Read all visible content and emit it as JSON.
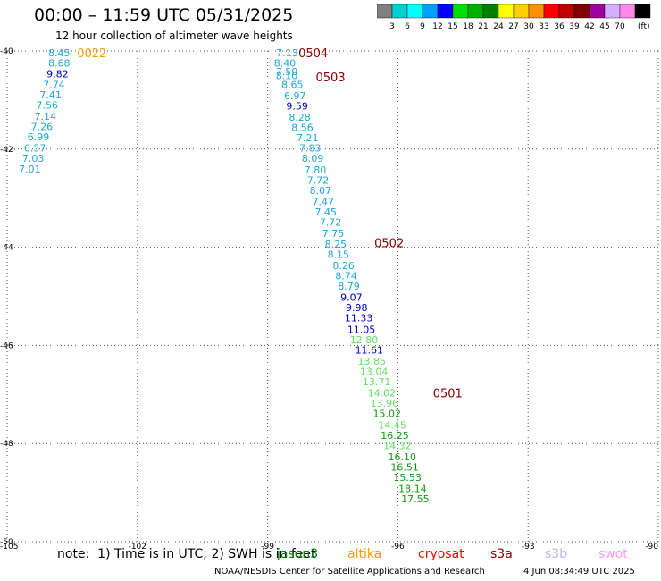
{
  "header": {
    "title": "00:00 – 11:59 UTC 05/31/2025",
    "subtitle": "12 hour collection of altimeter wave heights"
  },
  "colorbar": {
    "bins": [
      {
        "label": "",
        "color": "#808080"
      },
      {
        "label": "3",
        "color": "#00d0d0"
      },
      {
        "label": "6",
        "color": "#00ffff"
      },
      {
        "label": "9",
        "color": "#00a0ff"
      },
      {
        "label": "12",
        "color": "#0000ff"
      },
      {
        "label": "15",
        "color": "#00e000"
      },
      {
        "label": "18",
        "color": "#00b000"
      },
      {
        "label": "21",
        "color": "#008000"
      },
      {
        "label": "24",
        "color": "#ffff00"
      },
      {
        "label": "27",
        "color": "#ffd000"
      },
      {
        "label": "30",
        "color": "#ff9000"
      },
      {
        "label": "33",
        "color": "#ff0000"
      },
      {
        "label": "36",
        "color": "#c00000"
      },
      {
        "label": "39",
        "color": "#800000"
      },
      {
        "label": "42",
        "color": "#a000a0"
      },
      {
        "label": "45",
        "color": "#d0b0ff"
      },
      {
        "label": "70",
        "color": "#ff88e8"
      },
      {
        "label": "",
        "color": "#000000"
      }
    ],
    "unit": "(ft)"
  },
  "chart_data": {
    "type": "scatter",
    "xlabel": "",
    "ylabel": "",
    "xlim": [
      -105,
      -90
    ],
    "ylim": [
      -50,
      -40
    ],
    "xticks": [
      "-105",
      "-102",
      "-99",
      "-96",
      "-93",
      "-90"
    ],
    "yticks": [
      "-40",
      "-42",
      "-44",
      "-46",
      "-48",
      "-50"
    ],
    "grid": true,
    "points": [
      {
        "x": -103.8,
        "y": -40.04,
        "label": "8.45",
        "color": "#1ea8d8"
      },
      {
        "x": -103.8,
        "y": -40.25,
        "label": "8.68",
        "color": "#1ea8d8"
      },
      {
        "x": -103.84,
        "y": -40.46,
        "label": "9.82",
        "color": "#0000cc"
      },
      {
        "x": -103.92,
        "y": -40.68,
        "label": "7.74",
        "color": "#1ea8d8"
      },
      {
        "x": -104.0,
        "y": -40.89,
        "label": "7.41",
        "color": "#1ea8d8"
      },
      {
        "x": -104.08,
        "y": -41.1,
        "label": "7.56",
        "color": "#1ea8d8"
      },
      {
        "x": -104.12,
        "y": -41.33,
        "label": "7.14",
        "color": "#1ea8d8"
      },
      {
        "x": -104.2,
        "y": -41.54,
        "label": "7.26",
        "color": "#1ea8d8"
      },
      {
        "x": -104.28,
        "y": -41.75,
        "label": "6.99",
        "color": "#1ea8d8"
      },
      {
        "x": -104.36,
        "y": -41.98,
        "label": "6.57",
        "color": "#1ea8d8"
      },
      {
        "x": -104.4,
        "y": -42.19,
        "label": "7.03",
        "color": "#1ea8d8"
      },
      {
        "x": -104.48,
        "y": -42.4,
        "label": "7.01",
        "color": "#1ea8d8"
      },
      {
        "x": -98.55,
        "y": -40.04,
        "label": "7.13",
        "color": "#1ea8d8"
      },
      {
        "x": -98.6,
        "y": -40.25,
        "label": "8.40",
        "color": "#1ea8d8"
      },
      {
        "x": -98.56,
        "y": -40.42,
        "label": "7.50",
        "color": "#1ea8d8"
      },
      {
        "x": -98.56,
        "y": -40.5,
        "label": "8.10",
        "color": "#1ea8d8"
      },
      {
        "x": -98.43,
        "y": -40.68,
        "label": "8.65",
        "color": "#1ea8d8"
      },
      {
        "x": -98.37,
        "y": -40.91,
        "label": "6.97",
        "color": "#1ea8d8"
      },
      {
        "x": -98.32,
        "y": -41.12,
        "label": "9.59",
        "color": "#0000cc"
      },
      {
        "x": -98.26,
        "y": -41.35,
        "label": "8.28",
        "color": "#1ea8d8"
      },
      {
        "x": -98.2,
        "y": -41.56,
        "label": "8.56",
        "color": "#1ea8d8"
      },
      {
        "x": -98.08,
        "y": -41.77,
        "label": "7.21",
        "color": "#1ea8d8"
      },
      {
        "x": -98.02,
        "y": -41.98,
        "label": "7.83",
        "color": "#1ea8d8"
      },
      {
        "x": -97.96,
        "y": -42.19,
        "label": "8.09",
        "color": "#1ea8d8"
      },
      {
        "x": -97.9,
        "y": -42.42,
        "label": "7.80",
        "color": "#1ea8d8"
      },
      {
        "x": -97.84,
        "y": -42.63,
        "label": "7.72",
        "color": "#1ea8d8"
      },
      {
        "x": -97.78,
        "y": -42.84,
        "label": "8.07",
        "color": "#1ea8d8"
      },
      {
        "x": -97.72,
        "y": -43.07,
        "label": "7.47",
        "color": "#1ea8d8"
      },
      {
        "x": -97.66,
        "y": -43.28,
        "label": "7.45",
        "color": "#1ea8d8"
      },
      {
        "x": -97.55,
        "y": -43.49,
        "label": "7.72",
        "color": "#1ea8d8"
      },
      {
        "x": -97.49,
        "y": -43.72,
        "label": "7.75",
        "color": "#1ea8d8"
      },
      {
        "x": -97.43,
        "y": -43.93,
        "label": "8.25",
        "color": "#1ea8d8"
      },
      {
        "x": -97.37,
        "y": -44.14,
        "label": "8.15",
        "color": "#1ea8d8"
      },
      {
        "x": -97.25,
        "y": -44.37,
        "label": "8.26",
        "color": "#1ea8d8"
      },
      {
        "x": -97.19,
        "y": -44.58,
        "label": "8.74",
        "color": "#1ea8d8"
      },
      {
        "x": -97.13,
        "y": -44.79,
        "label": "8.79",
        "color": "#1ea8d8"
      },
      {
        "x": -97.07,
        "y": -45.02,
        "label": "9.07",
        "color": "#0000cc"
      },
      {
        "x": -96.95,
        "y": -45.23,
        "label": "9.98",
        "color": "#0000cc"
      },
      {
        "x": -96.9,
        "y": -45.44,
        "label": "11.33",
        "color": "#0000cc"
      },
      {
        "x": -96.84,
        "y": -45.67,
        "label": "11.05",
        "color": "#0000cc"
      },
      {
        "x": -96.78,
        "y": -45.88,
        "label": "12.80",
        "color": "#66dd66"
      },
      {
        "x": -96.66,
        "y": -46.09,
        "label": "11.61",
        "color": "#0000cc"
      },
      {
        "x": -96.6,
        "y": -46.32,
        "label": "13.85",
        "color": "#66dd66"
      },
      {
        "x": -96.55,
        "y": -46.53,
        "label": "13.04",
        "color": "#66dd66"
      },
      {
        "x": -96.49,
        "y": -46.74,
        "label": "13.71",
        "color": "#66dd66"
      },
      {
        "x": -96.37,
        "y": -46.97,
        "label": "14.02",
        "color": "#66dd66"
      },
      {
        "x": -96.31,
        "y": -47.18,
        "label": "13.96",
        "color": "#66dd66"
      },
      {
        "x": -96.25,
        "y": -47.39,
        "label": "15.02",
        "color": "#119911"
      },
      {
        "x": -96.13,
        "y": -47.62,
        "label": "14.45",
        "color": "#66dd66"
      },
      {
        "x": -96.07,
        "y": -47.83,
        "label": "16.25",
        "color": "#119911"
      },
      {
        "x": -96.01,
        "y": -48.04,
        "label": "14.32",
        "color": "#66dd66"
      },
      {
        "x": -95.9,
        "y": -48.27,
        "label": "16.10",
        "color": "#119911"
      },
      {
        "x": -95.84,
        "y": -48.48,
        "label": "16.51",
        "color": "#119911"
      },
      {
        "x": -95.78,
        "y": -48.69,
        "label": "15.53",
        "color": "#119911"
      },
      {
        "x": -95.66,
        "y": -48.92,
        "label": "18.14",
        "color": "#119911"
      },
      {
        "x": -95.6,
        "y": -49.13,
        "label": "17.55",
        "color": "#119911"
      }
    ],
    "annotations": [
      {
        "x": -103.05,
        "y": -40.04,
        "text": "0022",
        "color": "#ff9900"
      },
      {
        "x": -97.95,
        "y": -40.04,
        "text": "0504",
        "color": "#880000"
      },
      {
        "x": -97.55,
        "y": -40.53,
        "text": "0503",
        "color": "#880000"
      },
      {
        "x": -96.2,
        "y": -43.91,
        "text": "0502",
        "color": "#880000"
      },
      {
        "x": -94.85,
        "y": -46.97,
        "text": "0501",
        "color": "#880000"
      }
    ]
  },
  "note": {
    "text": "note:  1) Time is in UTC; 2) SWH is in feet"
  },
  "legend": [
    {
      "name": "jason3",
      "color": "#008000"
    },
    {
      "name": "altika",
      "color": "#ff9900"
    },
    {
      "name": "cryosat",
      "color": "#ff0000"
    },
    {
      "name": "s3a",
      "color": "#880000"
    },
    {
      "name": "s3b",
      "color": "#c0b0ff"
    },
    {
      "name": "swot",
      "color": "#ff99ee"
    }
  ],
  "footer": {
    "credit": "NOAA/NESDIS Center for Satellite Applications and Research",
    "timestamp": "4 Jun 08:34:49 UTC 2025"
  }
}
